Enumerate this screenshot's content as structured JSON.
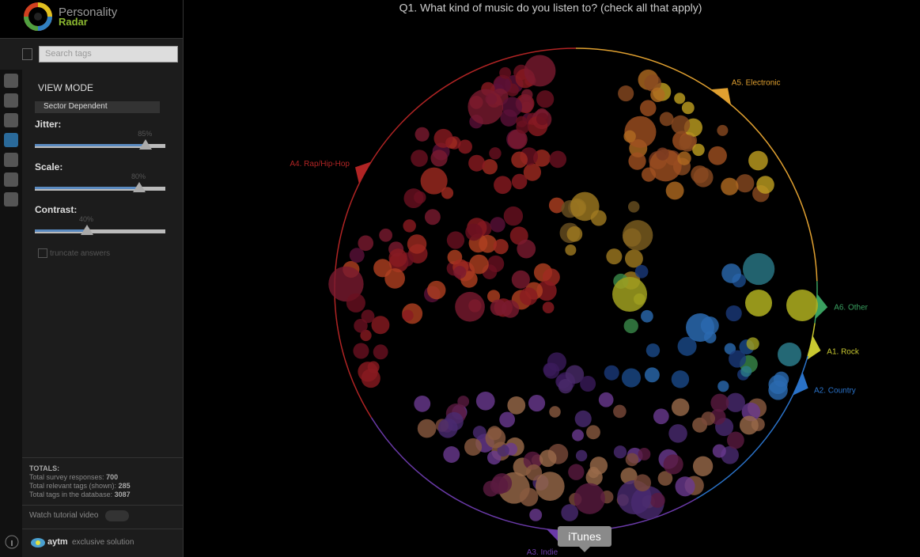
{
  "app": {
    "name_top": "Personality",
    "name_bottom": "Radar"
  },
  "search_placeholder": "Search tags",
  "view_mode": {
    "title": "VIEW MODE",
    "selected": "Sector Dependent"
  },
  "sliders": [
    {
      "label": "Jitter:",
      "value": 85,
      "value_label": "85%"
    },
    {
      "label": "Scale:",
      "value": 80,
      "value_label": "80%"
    },
    {
      "label": "Contrast:",
      "value": 40,
      "value_label": "40%"
    }
  ],
  "checkbox": "truncate answers",
  "totals": {
    "title": "TOTALS:",
    "items": [
      {
        "label": "Total survey responses:",
        "value": 700
      },
      {
        "label": "Total relevant tags (shown):",
        "value": 285
      },
      {
        "label": "Total tags in the database:",
        "value": 3087
      }
    ]
  },
  "tutorial": "Watch tutorial video",
  "footer": {
    "brand": "aytm",
    "tagline": "exclusive solution"
  },
  "question": "Q1. What kind of music do you listen to? (check all that apply)",
  "sectors": [
    {
      "label": "A5. Electronic",
      "color": "#e0a030"
    },
    {
      "label": "A4. Rap/Hip-Hop",
      "color": "#b02424"
    },
    {
      "label": "A6. Other",
      "color": "#3aa060"
    },
    {
      "label": "A1. Rock",
      "color": "#c8c830"
    },
    {
      "label": "A2. Country",
      "color": "#2a72c8"
    },
    {
      "label": "A3. Indie",
      "color": "#6a3aa8"
    }
  ],
  "tooltip": "iTunes"
}
